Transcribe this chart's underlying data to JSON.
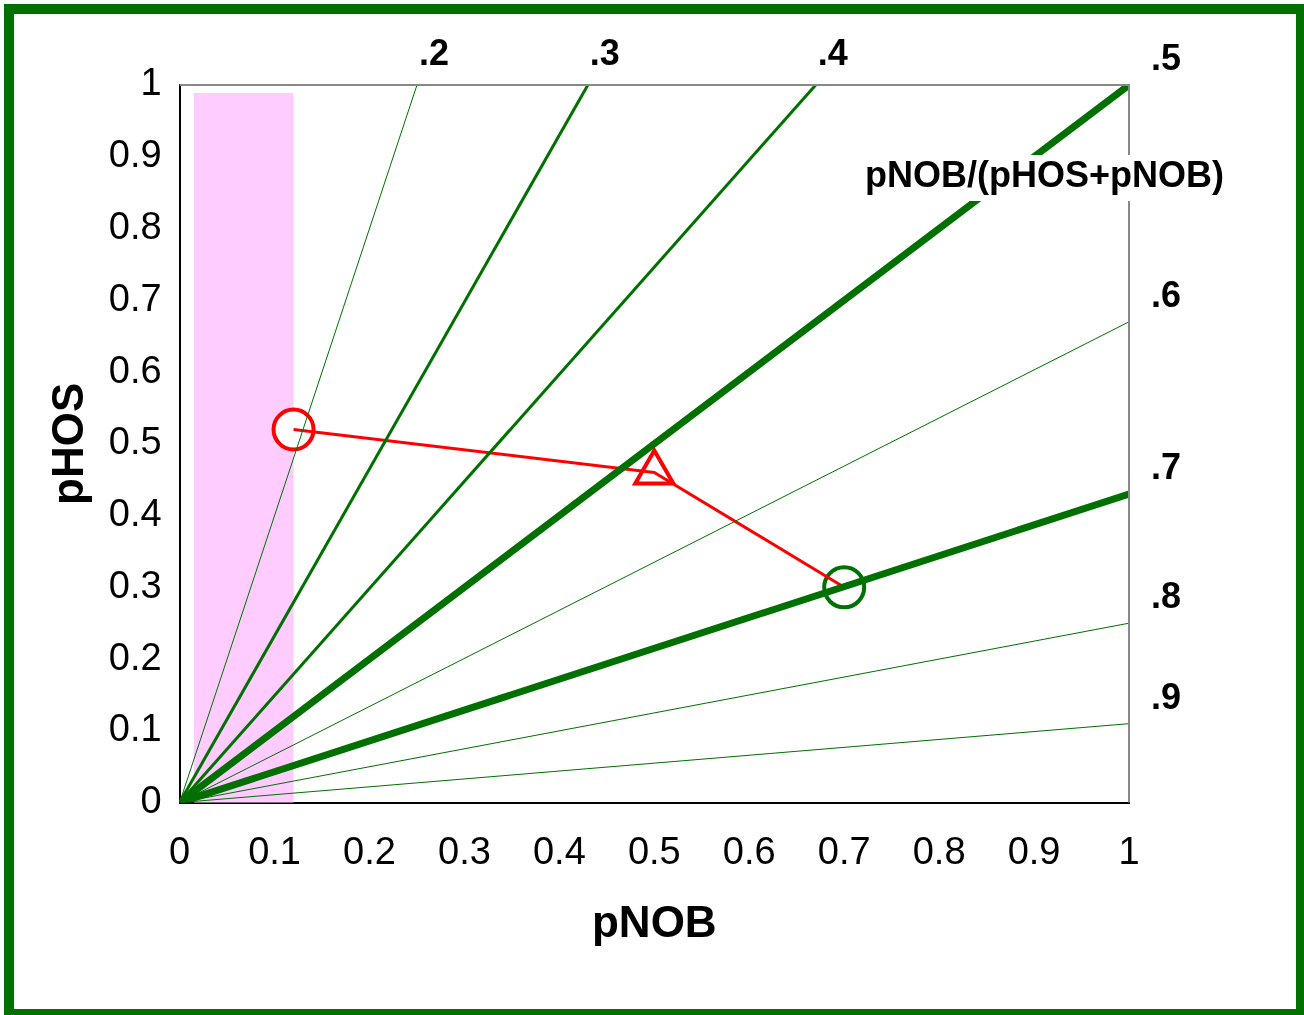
{
  "chart_data": {
    "type": "line",
    "xlabel": "pNOB",
    "ylabel": "pHOS",
    "xlim": [
      0,
      1
    ],
    "ylim": [
      0,
      1
    ],
    "xticks": [
      0,
      0.1,
      0.2,
      0.3,
      0.4,
      0.5,
      0.6,
      0.7,
      0.8,
      0.9,
      1
    ],
    "yticks": [
      0,
      0.1,
      0.2,
      0.3,
      0.4,
      0.5,
      0.6,
      0.7,
      0.8,
      0.9,
      1
    ],
    "grid": false,
    "legend": false,
    "marker": "none",
    "bands": [
      {
        "axis": "x",
        "from": 0.015,
        "to": 0.12,
        "color": "#ffccff"
      }
    ],
    "annotations": [
      "pNOB/(pHOS+pNOB)"
    ],
    "series": [
      {
        "name": ".2",
        "color": "#007000",
        "x": [
          0,
          0.25
        ],
        "values": [
          0,
          1
        ]
      },
      {
        "name": ".3",
        "color": "#007000",
        "x": [
          0,
          0.43
        ],
        "values": [
          0,
          1
        ]
      },
      {
        "name": ".4",
        "color": "#007000",
        "x": [
          0,
          0.67
        ],
        "values": [
          0,
          1
        ]
      },
      {
        "name": ".5",
        "color": "#007000",
        "x": [
          0,
          1
        ],
        "values": [
          0,
          1
        ]
      },
      {
        "name": ".6",
        "color": "#007000",
        "x": [
          0,
          1
        ],
        "values": [
          0,
          0.67
        ]
      },
      {
        "name": ".7",
        "color": "#007000",
        "x": [
          0,
          1
        ],
        "values": [
          0,
          0.43
        ]
      },
      {
        "name": ".8",
        "color": "#007000",
        "x": [
          0,
          1
        ],
        "values": [
          0,
          0.25
        ]
      },
      {
        "name": ".9",
        "color": "#007000",
        "x": [
          0,
          1
        ],
        "values": [
          0,
          0.11
        ]
      },
      {
        "color": "#ff0000",
        "x": [
          0.12,
          0.5,
          0.7
        ],
        "values": [
          0.52,
          0.46,
          0.3
        ]
      },
      {
        "type": "scatter",
        "marker": "circle",
        "color": "#ff0000",
        "x": [
          0.12
        ],
        "values": [
          0.52
        ]
      },
      {
        "type": "scatter",
        "marker": "triangle",
        "color": "#ff0000",
        "x": [
          0.5
        ],
        "values": [
          0.46
        ]
      },
      {
        "type": "scatter",
        "marker": "circle",
        "color": "#007000",
        "x": [
          0.7
        ],
        "values": [
          0.3
        ]
      }
    ]
  }
}
